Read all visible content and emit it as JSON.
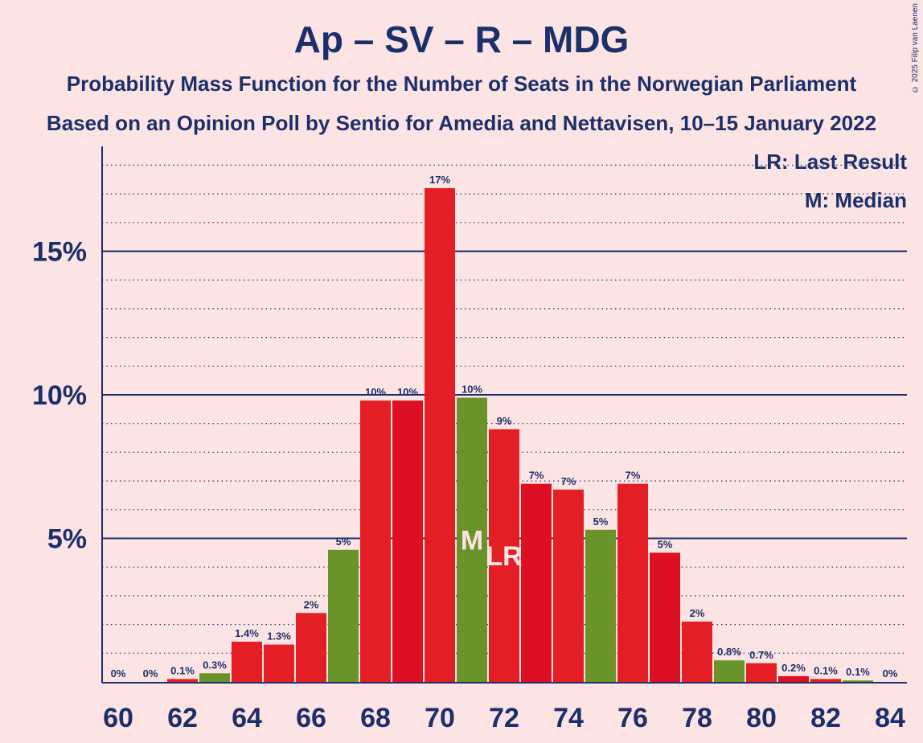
{
  "header": {
    "title": "Ap – SV – R – MDG",
    "subtitle1": "Probability Mass Function for the Number of Seats in the Norwegian Parliament",
    "subtitle2": "Based on an Opinion Poll by Sentio for Amedia and Nettavisen, 10–15 January 2022",
    "copyright": "© 2025 Filip van Laenen"
  },
  "legend": {
    "last_result": "LR: Last Result",
    "median": "M: Median"
  },
  "chart_data": {
    "type": "bar",
    "x": [
      60,
      61,
      62,
      63,
      64,
      65,
      66,
      67,
      68,
      69,
      70,
      71,
      72,
      73,
      74,
      75,
      76,
      77,
      78,
      79,
      80,
      81,
      82,
      83,
      84
    ],
    "values": [
      0,
      0,
      0.1,
      0.3,
      1.4,
      1.3,
      2.4,
      4.6,
      9.8,
      9.8,
      17.2,
      9.9,
      8.8,
      6.9,
      6.7,
      5.3,
      6.9,
      4.5,
      2.1,
      0.75,
      0.65,
      0.2,
      0.1,
      0.05,
      0
    ],
    "labels": [
      "0%",
      "0%",
      "0.1%",
      "0.3%",
      "1.4%",
      "1.3%",
      "2%",
      "5%",
      "10%",
      "10%",
      "17%",
      "10%",
      "9%",
      "7%",
      "7%",
      "5%",
      "7%",
      "5%",
      "2%",
      "0.8%",
      "0.7%",
      "0.2%",
      "0.1%",
      "0.1%",
      "0%"
    ],
    "x_tick_labels": [
      "60",
      "62",
      "64",
      "66",
      "68",
      "70",
      "72",
      "74",
      "76",
      "78",
      "80",
      "82",
      "84"
    ],
    "y_tick_labels": [
      "5%",
      "10%",
      "15%"
    ],
    "y_ticks": [
      5,
      10,
      15
    ],
    "ylim": [
      0,
      18.6
    ],
    "median_seat": 71,
    "median_marker": "M",
    "last_result_seat": 72,
    "last_result_marker": "LR",
    "colors": {
      "red": "#e31e24",
      "dark_red": "#dd0f22",
      "green": "#6a9329",
      "text": "#1b2f6b",
      "marker": "#fde4e4"
    },
    "bar_colors": [
      "red",
      "red",
      "red",
      "green",
      "red",
      "red",
      "red",
      "green",
      "red",
      "dark_red",
      "red",
      "green",
      "red",
      "dark_red",
      "red",
      "green",
      "red",
      "dark_red",
      "red",
      "green",
      "red",
      "dark_red",
      "red",
      "green",
      "red"
    ]
  }
}
